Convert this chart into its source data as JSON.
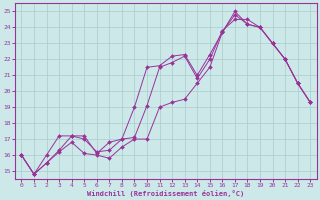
{
  "xlabel": "Windchill (Refroidissement éolien,°C)",
  "bg_color": "#cce8e8",
  "grid_color": "#aacccc",
  "line_color": "#993399",
  "xlim": [
    -0.5,
    23.5
  ],
  "ylim": [
    14.5,
    25.5
  ],
  "yticks": [
    15,
    16,
    17,
    18,
    19,
    20,
    21,
    22,
    23,
    24,
    25
  ],
  "xticks": [
    0,
    1,
    2,
    3,
    4,
    5,
    6,
    7,
    8,
    9,
    10,
    11,
    12,
    13,
    14,
    15,
    16,
    17,
    18,
    19,
    20,
    21,
    22,
    23
  ],
  "line1_x": [
    0,
    1,
    2,
    3,
    4,
    5,
    6,
    7,
    8,
    9,
    10,
    11,
    12,
    13,
    14,
    15,
    16,
    17,
    18,
    19,
    20,
    21,
    22,
    23
  ],
  "line1_y": [
    16.0,
    14.8,
    15.5,
    16.3,
    17.2,
    17.2,
    16.1,
    16.8,
    17.0,
    17.1,
    19.1,
    21.5,
    21.8,
    22.2,
    20.8,
    22.0,
    23.8,
    24.5,
    24.5,
    24.0,
    23.0,
    22.0,
    20.5,
    19.3
  ],
  "line2_x": [
    0,
    1,
    2,
    3,
    4,
    5,
    6,
    7,
    8,
    9,
    10,
    11,
    12,
    13,
    14,
    15,
    16,
    17,
    18,
    19,
    20,
    21,
    22,
    23
  ],
  "line2_y": [
    16.0,
    14.8,
    16.0,
    17.2,
    17.2,
    17.0,
    16.2,
    16.3,
    17.0,
    19.0,
    21.5,
    21.6,
    22.2,
    22.3,
    21.0,
    22.3,
    23.7,
    25.0,
    24.2,
    24.0,
    23.0,
    22.0,
    20.5,
    19.3
  ],
  "line3_x": [
    0,
    1,
    2,
    3,
    4,
    5,
    6,
    7,
    8,
    9,
    10,
    11,
    12,
    13,
    14,
    15,
    16,
    17,
    18,
    19,
    20,
    21,
    22,
    23
  ],
  "line3_y": [
    16.0,
    14.8,
    15.5,
    16.2,
    16.8,
    16.1,
    16.0,
    15.8,
    16.5,
    17.0,
    17.0,
    19.0,
    19.3,
    19.5,
    20.5,
    21.5,
    23.7,
    24.8,
    24.2,
    24.0,
    23.0,
    22.0,
    20.5,
    19.3
  ]
}
